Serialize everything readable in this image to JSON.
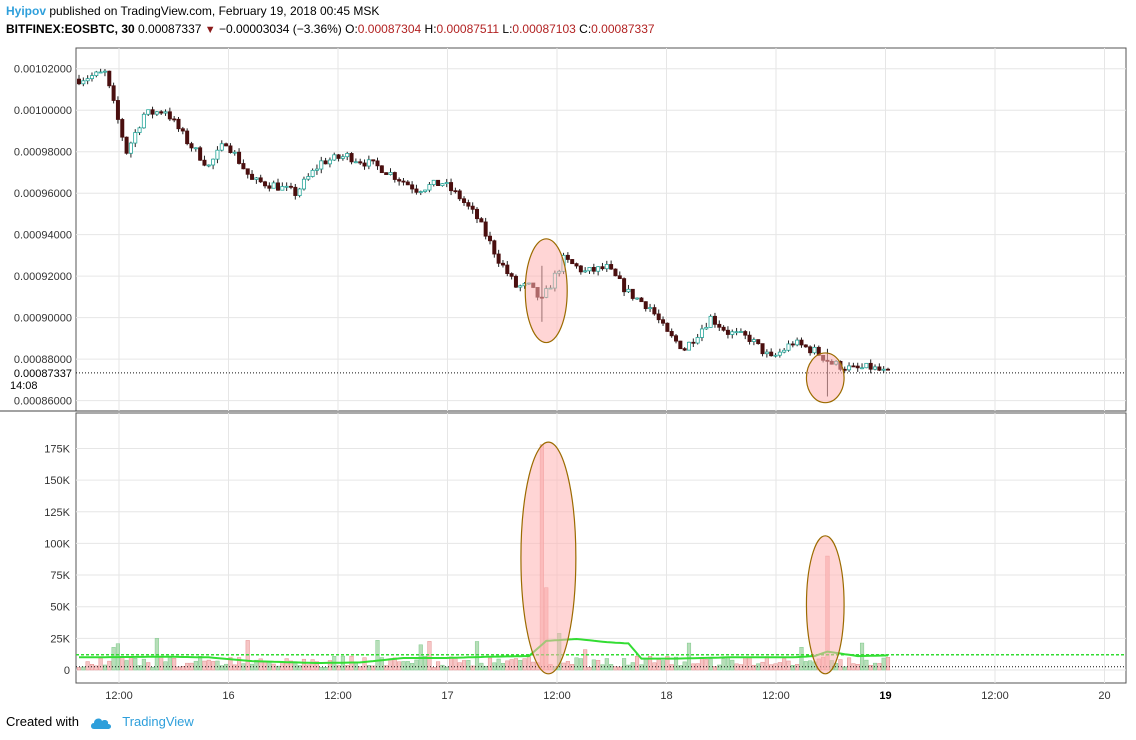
{
  "header": {
    "author": "Hyipov",
    "published_text": "published on TradingView.com, February 19, 2018 00:45 MSK",
    "symbol": "BITFINEX:EOSBTC, 30",
    "last_price": "0.00087337",
    "change": "−0.00003034 (−3.36%)",
    "o_label": "O:",
    "o_value": "0.00087304",
    "h_label": "H:",
    "h_value": "0.00087511",
    "l_label": "L:",
    "l_value": "0.00087103",
    "c_label": "C:",
    "c_value": "0.00087337"
  },
  "footer": {
    "created_with": "Created with",
    "brand": "TradingView"
  },
  "colors": {
    "up": "#26a69a",
    "down": "#4a0f0f",
    "vol_up": "#a5d6a7",
    "vol_down": "#f4b6b6",
    "ma": "#33dd33",
    "ellipse_fill": "#ffb3b3",
    "ellipse_stroke": "#9b6b00"
  },
  "chart_data": [
    {
      "type": "candlestick",
      "price_axis": [
        "0.00102000",
        "0.00100000",
        "0.00098000",
        "0.00096000",
        "0.00094000",
        "0.00092000",
        "0.00090000",
        "0.00088000",
        "0.00086000"
      ],
      "current_price_label": "0.00087337",
      "countdown_label": "14:08",
      "time_axis": [
        "12:00",
        "16",
        "12:00",
        "17",
        "12:00",
        "18",
        "12:00",
        "19",
        "12:00",
        "20"
      ],
      "ylim": [
        0.000855,
        0.00103
      ],
      "close_path": [
        [
          0,
          0.001015
        ],
        [
          6,
          0.001018
        ],
        [
          11,
          0.00098
        ],
        [
          15,
          0.000998
        ],
        [
          20,
          0.001
        ],
        [
          25,
          0.000985
        ],
        [
          30,
          0.000973
        ],
        [
          34,
          0.000985
        ],
        [
          40,
          0.000966
        ],
        [
          45,
          0.000964
        ],
        [
          50,
          0.00096
        ],
        [
          56,
          0.000975
        ],
        [
          62,
          0.000978
        ],
        [
          70,
          0.000972
        ],
        [
          78,
          0.000962
        ],
        [
          84,
          0.000965
        ],
        [
          88,
          0.000958
        ],
        [
          92,
          0.000948
        ],
        [
          97,
          0.000928
        ],
        [
          101,
          0.000915
        ],
        [
          104,
          0.000915
        ],
        [
          107,
          0.000908
        ],
        [
          112,
          0.000928
        ],
        [
          117,
          0.000922
        ],
        [
          122,
          0.000924
        ],
        [
          127,
          0.000912
        ],
        [
          132,
          0.000905
        ],
        [
          136,
          0.000892
        ],
        [
          140,
          0.000885
        ],
        [
          146,
          0.0009
        ],
        [
          150,
          0.000893
        ],
        [
          155,
          0.00089
        ],
        [
          160,
          0.00088
        ],
        [
          165,
          0.000888
        ],
        [
          170,
          0.000884
        ],
        [
          174,
          0.000878
        ],
        [
          179,
          0.000875
        ],
        [
          183,
          0.000876
        ],
        [
          187,
          0.000873
        ]
      ],
      "spikes": [
        {
          "index": 107,
          "high": 0.000925,
          "low": 0.000898
        },
        {
          "index": 173,
          "high": 0.000885,
          "low": 0.000862
        }
      ],
      "highlights": [
        {
          "from_index": 105,
          "to_index": 111,
          "high": 0.000938,
          "low": 0.000888
        },
        {
          "from_index": 170,
          "to_index": 175,
          "high": 0.000883,
          "low": 0.000859
        }
      ]
    },
    {
      "type": "volume",
      "y_axis": [
        "175K",
        "150K",
        "125K",
        "100K",
        "75K",
        "50K",
        "25K",
        "0"
      ],
      "ylim": [
        0,
        188000
      ],
      "baseline_volume": 12000,
      "ma_path": [
        [
          0,
          10000
        ],
        [
          20,
          10500
        ],
        [
          30,
          10000
        ],
        [
          40,
          7000
        ],
        [
          55,
          5500
        ],
        [
          65,
          6000
        ],
        [
          75,
          9500
        ],
        [
          85,
          9500
        ],
        [
          95,
          10500
        ],
        [
          104,
          11000
        ],
        [
          108,
          23000
        ],
        [
          115,
          24500
        ],
        [
          122,
          22000
        ],
        [
          127,
          21000
        ],
        [
          130,
          9000
        ],
        [
          138,
          9000
        ],
        [
          150,
          10000
        ],
        [
          165,
          10000
        ],
        [
          170,
          11000
        ],
        [
          173,
          14500
        ],
        [
          180,
          11000
        ],
        [
          187,
          11500
        ]
      ],
      "ma_line_level": 12000,
      "big_bars": [
        {
          "index": 107,
          "value": 178000,
          "dir": "down"
        },
        {
          "index": 108,
          "value": 65000,
          "dir": "down"
        },
        {
          "index": 173,
          "value": 90000,
          "dir": "down"
        }
      ],
      "highlights": [
        {
          "from_index": 104,
          "to_index": 113,
          "high": 180000,
          "low": -3000
        },
        {
          "from_index": 170,
          "to_index": 175,
          "high": 106000,
          "low": -3000
        }
      ]
    }
  ]
}
